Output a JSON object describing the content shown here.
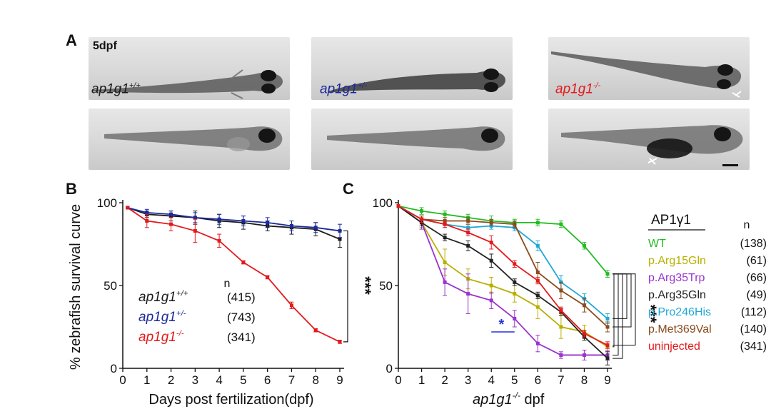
{
  "panel_a": {
    "letter": "A",
    "stage_label": "5dpf",
    "genotypes": [
      {
        "base": "ap1g1",
        "sup": "+/+",
        "color": "#1a1a1a"
      },
      {
        "base": "ap1g1",
        "sup": "+/-",
        "color": "#1b2a9c"
      },
      {
        "base": "ap1g1",
        "sup": "-/-",
        "color": "#e31a1c"
      }
    ]
  },
  "chart_data": [
    {
      "panel": "B",
      "type": "line",
      "xlabel": "Days post fertilization(dpf)",
      "ylabel": "% zebrafish survival curve",
      "xlim": [
        0,
        9
      ],
      "ylim": [
        0,
        100
      ],
      "x_ticks": [
        0,
        1,
        2,
        3,
        4,
        5,
        6,
        7,
        8,
        9
      ],
      "y_ticks": [
        0,
        50,
        100
      ],
      "legend_header": "n",
      "legend_placement": "bottom-left",
      "significance": "***",
      "series": [
        {
          "name_base": "ap1g1",
          "name_sup": "+/+",
          "n": "(415)",
          "color": "#1a1a1a",
          "x": [
            0.2,
            1,
            2,
            3,
            4,
            5,
            6,
            7,
            8,
            9
          ],
          "y": [
            97,
            93,
            92,
            91,
            89,
            88,
            86,
            85,
            84,
            78
          ],
          "err": [
            0,
            2,
            3,
            4,
            4,
            4,
            3,
            4,
            4,
            5
          ]
        },
        {
          "name_base": "ap1g1",
          "name_sup": "+/-",
          "n": "(743)",
          "color": "#1b2a9c",
          "x": [
            0.2,
            1,
            2,
            3,
            4,
            5,
            6,
            7,
            8,
            9
          ],
          "y": [
            97,
            94,
            93,
            91,
            90,
            89,
            88,
            86,
            85,
            83
          ],
          "err": [
            0,
            2,
            2,
            3,
            3,
            3,
            3,
            3,
            3,
            4
          ]
        },
        {
          "name_base": "ap1g1",
          "name_sup": "-/-",
          "n": "(341)",
          "color": "#e31a1c",
          "x": [
            0.2,
            1,
            2,
            3,
            4,
            5,
            6,
            7,
            8,
            9
          ],
          "y": [
            97,
            89,
            87,
            83,
            77,
            64,
            55,
            38,
            23,
            16
          ],
          "err": [
            0,
            4,
            4,
            7,
            4,
            1,
            1,
            2,
            1,
            1
          ]
        }
      ]
    },
    {
      "panel": "C",
      "type": "line",
      "xlabel_base": "ap1g1",
      "xlabel_sup": "-/-",
      "xlabel_rest": "dpf",
      "xlim": [
        0,
        9
      ],
      "ylim": [
        0,
        100
      ],
      "x_ticks": [
        0,
        1,
        2,
        3,
        4,
        5,
        6,
        7,
        8,
        9
      ],
      "y_ticks": [
        0,
        50,
        100
      ],
      "legend_title": "AP1γ1",
      "legend_header": "n",
      "legend_placement": "right",
      "significance": "***",
      "annotation_star": "*",
      "series": [
        {
          "name": "WT",
          "n": "(138)",
          "color": "#22bb22",
          "x": [
            0,
            1,
            2,
            3,
            4,
            5,
            6,
            7,
            8,
            9
          ],
          "y": [
            98,
            95,
            93,
            91,
            89,
            88,
            88,
            87,
            74,
            57
          ],
          "err": [
            0,
            2,
            2,
            2,
            3,
            2,
            2,
            2,
            2,
            2
          ]
        },
        {
          "name": "p.Arg15Gln",
          "n": "(61)",
          "color": "#b8b000",
          "x": [
            0,
            1,
            2,
            3,
            4,
            5,
            6,
            7,
            8,
            9
          ],
          "y": [
            98,
            88,
            64,
            54,
            50,
            45,
            37,
            25,
            22,
            13
          ],
          "err": [
            0,
            3,
            8,
            6,
            5,
            5,
            7,
            7,
            4,
            3
          ]
        },
        {
          "name": "p.Arg35Trp",
          "n": "(66)",
          "color": "#9933cc",
          "x": [
            0,
            1,
            2,
            3,
            4,
            5,
            6,
            7,
            8,
            9
          ],
          "y": [
            98,
            88,
            52,
            45,
            41,
            30,
            15,
            8,
            8,
            8
          ],
          "err": [
            0,
            4,
            8,
            12,
            5,
            5,
            5,
            2,
            3,
            3
          ]
        },
        {
          "name": "p.Arg35Gln",
          "n": "(49)",
          "color": "#222222",
          "x": [
            0,
            1,
            2,
            3,
            4,
            5,
            6,
            7,
            8,
            9
          ],
          "y": [
            98,
            88,
            79,
            74,
            65,
            52,
            44,
            34,
            19,
            6
          ],
          "err": [
            0,
            2,
            2,
            3,
            4,
            2,
            2,
            2,
            2,
            4
          ]
        },
        {
          "name": "p.Pro246His",
          "n": "(112)",
          "color": "#22a7d6",
          "x": [
            0,
            1,
            2,
            3,
            4,
            5,
            6,
            7,
            8,
            9
          ],
          "y": [
            98,
            90,
            87,
            85,
            86,
            85,
            74,
            52,
            42,
            30
          ],
          "err": [
            0,
            2,
            2,
            2,
            2,
            2,
            3,
            4,
            3,
            3
          ]
        },
        {
          "name": "p.Met369Val",
          "n": "(140)",
          "color": "#8b4a1c",
          "x": [
            0,
            1,
            2,
            3,
            4,
            5,
            6,
            7,
            8,
            9
          ],
          "y": [
            98,
            90,
            89,
            89,
            88,
            87,
            58,
            47,
            38,
            25
          ],
          "err": [
            0,
            2,
            2,
            2,
            2,
            2,
            6,
            5,
            4,
            3
          ]
        },
        {
          "name": "uninjected",
          "n": "(341)",
          "color": "#e31a1c",
          "x": [
            0,
            1,
            2,
            3,
            4,
            5,
            6,
            7,
            8,
            9
          ],
          "y": [
            98,
            90,
            87,
            82,
            76,
            63,
            53,
            35,
            21,
            14
          ],
          "err": [
            0,
            2,
            2,
            2,
            4,
            2,
            2,
            2,
            2,
            2
          ]
        }
      ]
    }
  ]
}
